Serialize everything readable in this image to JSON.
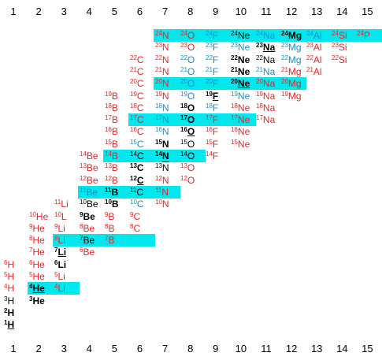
{
  "axis_labels": [
    "1",
    "2",
    "3",
    "4",
    "5",
    "6",
    "7",
    "8",
    "9",
    "10",
    "11",
    "12",
    "13",
    "14",
    "15"
  ],
  "colors": {
    "red": "#ee2222",
    "blue": "#1a8ec8",
    "black": "#000000",
    "band": "#00e8ee"
  },
  "bands": [
    {
      "row": 0,
      "cols": [
        6,
        15
      ]
    },
    {
      "row": 4,
      "cols": [
        6,
        12
      ]
    },
    {
      "row": 7,
      "cols": [
        5,
        10
      ]
    },
    {
      "row": 10,
      "cols": [
        4,
        8
      ]
    },
    {
      "row": 13,
      "cols": [
        3,
        7
      ]
    },
    {
      "row": 17,
      "cols": [
        2,
        6
      ]
    },
    {
      "row": 21,
      "cols": [
        1,
        3
      ]
    }
  ],
  "rows": [
    [
      [
        6,
        "24",
        "N",
        "r"
      ],
      [
        7,
        "24",
        "O",
        "r"
      ],
      [
        8,
        "24",
        "F",
        "bl"
      ],
      [
        9,
        "24",
        "Ne",
        "k"
      ],
      [
        10,
        "24",
        "Na",
        "bl"
      ],
      [
        11,
        "24",
        "Mg",
        "kb"
      ],
      [
        12,
        "24",
        "Al",
        "bl"
      ],
      [
        13,
        "24",
        "Si",
        "r"
      ],
      [
        14,
        "24",
        "P",
        "r"
      ]
    ],
    [
      [
        6,
        "23",
        "N",
        "r"
      ],
      [
        7,
        "23",
        "O",
        "r"
      ],
      [
        8,
        "23",
        "F",
        "bl"
      ],
      [
        9,
        "23",
        "Ne",
        "bl"
      ],
      [
        10,
        "23",
        "Na",
        "kbu"
      ],
      [
        11,
        "23",
        "Mg",
        "bl"
      ],
      [
        12,
        "23",
        "Al",
        "r"
      ],
      [
        13,
        "23",
        "Si",
        "r"
      ]
    ],
    [
      [
        5,
        "22",
        "C",
        "r"
      ],
      [
        6,
        "22",
        "N",
        "r"
      ],
      [
        7,
        "22",
        "O",
        "bl"
      ],
      [
        8,
        "22",
        "F",
        "bl"
      ],
      [
        9,
        "22",
        "Ne",
        "kb"
      ],
      [
        10,
        "22",
        "Na",
        "k"
      ],
      [
        11,
        "22",
        "Mg",
        "bl"
      ],
      [
        12,
        "22",
        "Al",
        "r"
      ],
      [
        13,
        "22",
        "Si",
        "r"
      ]
    ],
    [
      [
        5,
        "21",
        "C",
        "r"
      ],
      [
        6,
        "21",
        "N",
        "r"
      ],
      [
        7,
        "21",
        "O",
        "bl"
      ],
      [
        8,
        "21",
        "F",
        "bl"
      ],
      [
        9,
        "21",
        "Ne",
        "kb"
      ],
      [
        10,
        "21",
        "Na",
        "bl"
      ],
      [
        11,
        "21",
        "Mg",
        "r"
      ],
      [
        12,
        "21",
        "Al",
        "r"
      ]
    ],
    [
      [
        5,
        "20",
        "C",
        "r"
      ],
      [
        6,
        "20",
        "N",
        "r"
      ],
      [
        7,
        "20",
        "O",
        "bl"
      ],
      [
        8,
        "20",
        "F",
        "bl"
      ],
      [
        9,
        "20",
        "Ne",
        "kbu"
      ],
      [
        10,
        "20",
        "Na",
        "r"
      ],
      [
        11,
        "20",
        "Mg",
        "r"
      ]
    ],
    [
      [
        4,
        "19",
        "B",
        "r"
      ],
      [
        5,
        "19",
        "C",
        "r"
      ],
      [
        6,
        "19",
        "N",
        "r"
      ],
      [
        7,
        "19",
        "O",
        "bl"
      ],
      [
        8,
        "19",
        "F",
        "kbu"
      ],
      [
        9,
        "19",
        "Ne",
        "bl"
      ],
      [
        10,
        "19",
        "Na",
        "r"
      ],
      [
        11,
        "19",
        "Mg",
        "r"
      ]
    ],
    [
      [
        4,
        "18",
        "B",
        "r"
      ],
      [
        5,
        "18",
        "C",
        "r"
      ],
      [
        6,
        "18",
        "N",
        "bl"
      ],
      [
        7,
        "18",
        "O",
        "kb"
      ],
      [
        8,
        "18",
        "F",
        "bl"
      ],
      [
        9,
        "18",
        "Ne",
        "r"
      ],
      [
        10,
        "18",
        "Na",
        "r"
      ]
    ],
    [
      [
        4,
        "17",
        "B",
        "r"
      ],
      [
        5,
        "17",
        "C",
        "r"
      ],
      [
        6,
        "17",
        "N",
        "bl"
      ],
      [
        7,
        "17",
        "O",
        "kb"
      ],
      [
        8,
        "17",
        "F",
        "r"
      ],
      [
        9,
        "17",
        "Ne",
        "r"
      ],
      [
        10,
        "17",
        "Na",
        "r"
      ]
    ],
    [
      [
        4,
        "16",
        "B",
        "r"
      ],
      [
        5,
        "16",
        "C",
        "r"
      ],
      [
        6,
        "16",
        "N",
        "bl"
      ],
      [
        7,
        "16",
        "O",
        "kbu"
      ],
      [
        8,
        "16",
        "F",
        "r"
      ],
      [
        9,
        "16",
        "Ne",
        "r"
      ]
    ],
    [
      [
        4,
        "15",
        "B",
        "r"
      ],
      [
        5,
        "15",
        "C",
        "bl"
      ],
      [
        6,
        "15",
        "N",
        "kb"
      ],
      [
        7,
        "15",
        "O",
        "k"
      ],
      [
        8,
        "15",
        "F",
        "r"
      ],
      [
        9,
        "15",
        "Ne",
        "r"
      ]
    ],
    [
      [
        3,
        "14",
        "Be",
        "r"
      ],
      [
        4,
        "14",
        "B",
        "r"
      ],
      [
        5,
        "14",
        "C",
        "k"
      ],
      [
        6,
        "14",
        "N",
        "kb"
      ],
      [
        7,
        "14",
        "O",
        "k"
      ],
      [
        8,
        "14",
        "F",
        "r"
      ]
    ],
    [
      [
        3,
        "13",
        "Be",
        "r"
      ],
      [
        4,
        "13",
        "B",
        "r"
      ],
      [
        5,
        "13",
        "C",
        "kb"
      ],
      [
        6,
        "13",
        "N",
        "ko"
      ],
      [
        7,
        "13",
        "O",
        "r"
      ]
    ],
    [
      [
        3,
        "12",
        "Be",
        "r"
      ],
      [
        4,
        "12",
        "B",
        "r"
      ],
      [
        5,
        "12",
        "C",
        "kbu"
      ],
      [
        6,
        "12",
        "N",
        "r"
      ],
      [
        7,
        "12",
        "O",
        "r"
      ]
    ],
    [
      [
        3,
        "11",
        "Be",
        "bl"
      ],
      [
        4,
        "11",
        "B",
        "kb"
      ],
      [
        5,
        "11",
        "C",
        "k"
      ],
      [
        6,
        "11",
        "N",
        "r"
      ]
    ],
    [
      [
        2,
        "11",
        "Li",
        "r"
      ],
      [
        3,
        "10",
        "Be",
        "k"
      ],
      [
        4,
        "10",
        "B",
        "kb"
      ],
      [
        5,
        "10",
        "C",
        "bl"
      ],
      [
        6,
        "10",
        "N",
        "r"
      ]
    ],
    [
      [
        1,
        "10",
        "He",
        "r"
      ],
      [
        2,
        "10",
        "L",
        "r"
      ],
      [
        3,
        "9",
        "Be",
        "kb"
      ],
      [
        4,
        "9",
        "B",
        "r"
      ],
      [
        5,
        "9",
        "C",
        "r"
      ]
    ],
    [
      [
        1,
        "9",
        "He",
        "r"
      ],
      [
        2,
        "9",
        "Li",
        "r"
      ],
      [
        3,
        "8",
        "Be",
        "r"
      ],
      [
        4,
        "8",
        "B",
        "r"
      ],
      [
        5,
        "8",
        "C",
        "r"
      ]
    ],
    [
      [
        1,
        "8",
        "He",
        "r"
      ],
      [
        2,
        "8",
        "Li",
        "r"
      ],
      [
        3,
        "7",
        "Be",
        "k"
      ],
      [
        4,
        "7",
        "B",
        "r"
      ]
    ],
    [
      [
        1,
        "7",
        "He",
        "r"
      ],
      [
        2,
        "7",
        "Li",
        "kbu"
      ],
      [
        3,
        "6",
        "Be",
        "r"
      ]
    ],
    [
      [
        0,
        "6",
        "H",
        "r"
      ],
      [
        1,
        "6",
        "He",
        "r"
      ],
      [
        2,
        "6",
        "Li",
        "kb"
      ]
    ],
    [
      [
        0,
        "5",
        "H",
        "r"
      ],
      [
        1,
        "5",
        "He",
        "r"
      ],
      [
        2,
        "5",
        "Li",
        "r"
      ]
    ],
    [
      [
        0,
        "4",
        "H",
        "r"
      ],
      [
        1,
        "4",
        "He",
        "kbu"
      ],
      [
        2,
        "4",
        "Li",
        "r"
      ]
    ],
    [
      [
        0,
        "3",
        "H",
        "k"
      ],
      [
        1,
        "3",
        "He",
        "kb"
      ]
    ],
    [
      [
        0,
        "2",
        "H",
        "kb"
      ]
    ],
    [
      [
        0,
        "1",
        "H",
        "kbu"
      ]
    ]
  ]
}
